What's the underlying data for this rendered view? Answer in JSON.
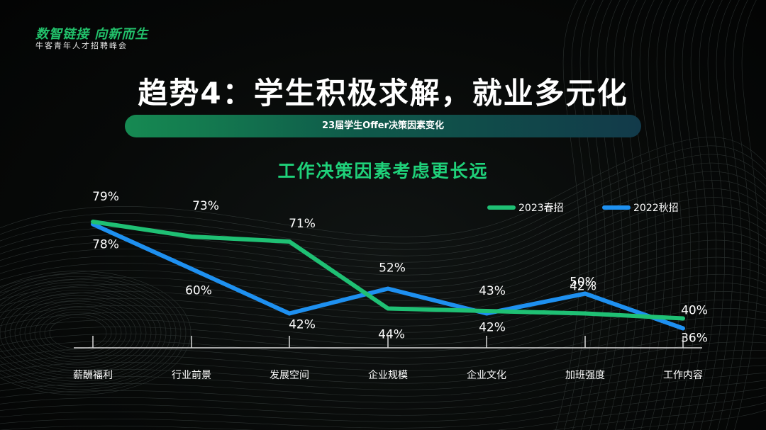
{
  "brand": {
    "main": "数智链接 向新而生",
    "sub": "牛客青年人才招聘峰会"
  },
  "page_title": "趋势4：学生积极求解，就业多元化",
  "banner": "23届学生Offer决策因素变化",
  "colors": {
    "accent_green": "#1fc074",
    "accent_blue": "#1e90f0"
  },
  "chart_data": {
    "type": "line",
    "title": "工作决策因素考虑更长远",
    "categories": [
      "薪酬福利",
      "行业前景",
      "发展空间",
      "企业规模",
      "企业文化",
      "加班强度",
      "工作内容"
    ],
    "series": [
      {
        "name": "2023春招",
        "color": "#1fc074",
        "values": [
          79,
          73,
          71,
          44,
          43,
          42,
          40
        ],
        "labels": [
          "79%",
          "73%",
          "71%",
          "44%",
          "43%",
          "42%",
          "40%"
        ]
      },
      {
        "name": "2022秋招",
        "color": "#1e90f0",
        "values": [
          78,
          60,
          42,
          52,
          42,
          50,
          36
        ],
        "labels": [
          "78%",
          "60%",
          "42%",
          "52%",
          "42%",
          "50%",
          "36%"
        ]
      }
    ],
    "legend_position": "top-right",
    "grid": false
  }
}
